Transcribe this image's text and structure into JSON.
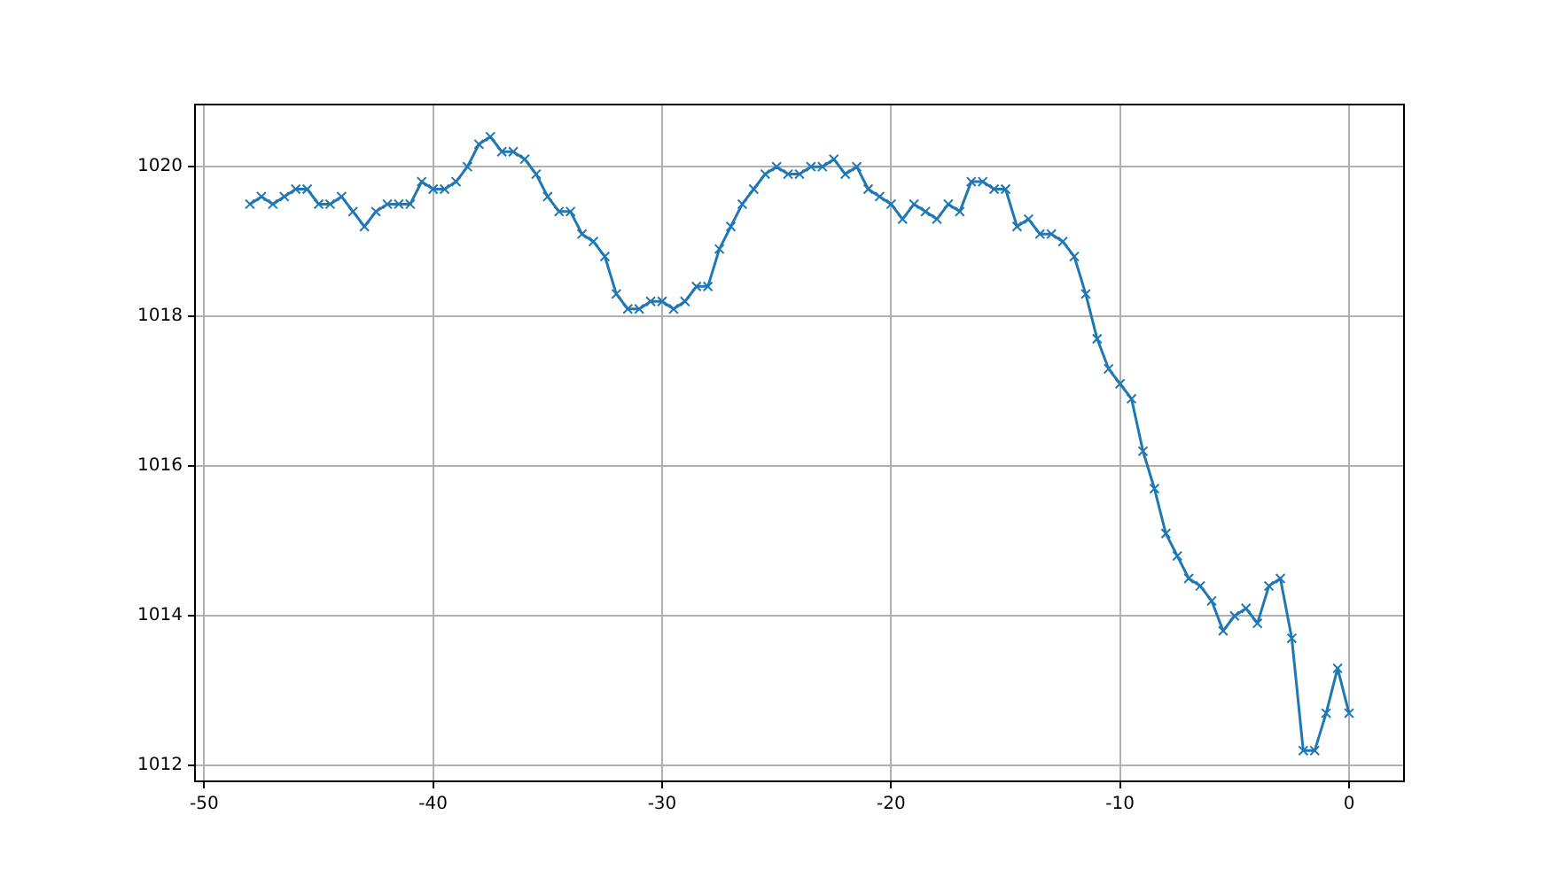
{
  "chart_data": {
    "type": "line",
    "marker": "cross",
    "grid": true,
    "xlim": [
      -50.4,
      2.4
    ],
    "ylim": [
      1011.79,
      1020.83
    ],
    "xticks": [
      -50,
      -40,
      -30,
      -20,
      -10,
      0
    ],
    "yticks": [
      1012,
      1014,
      1016,
      1018,
      1020
    ],
    "x": [
      -48,
      -47.5,
      -47,
      -46.5,
      -46,
      -45.5,
      -45,
      -44.5,
      -44,
      -43.5,
      -43,
      -42.5,
      -42,
      -41.5,
      -41,
      -40.5,
      -40,
      -39.5,
      -39,
      -38.5,
      -38,
      -37.5,
      -37,
      -36.5,
      -36,
      -35.5,
      -35,
      -34.5,
      -34,
      -33.5,
      -33,
      -32.5,
      -32,
      -31.5,
      -31,
      -30.5,
      -30,
      -29.5,
      -29,
      -28.5,
      -28,
      -27.5,
      -27,
      -26.5,
      -26,
      -25.5,
      -25,
      -24.5,
      -24,
      -23.5,
      -23,
      -22.5,
      -22,
      -21.5,
      -21,
      -20.5,
      -20,
      -19.5,
      -19,
      -18.5,
      -18,
      -17.5,
      -17,
      -16.5,
      -16,
      -15.5,
      -15,
      -14.5,
      -14,
      -13.5,
      -13,
      -12.5,
      -12,
      -11.5,
      -11,
      -10.5,
      -10,
      -9.5,
      -9,
      -8.5,
      -8,
      -7.5,
      -7,
      -6.5,
      -6,
      -5.5,
      -5,
      -4.5,
      -4,
      -3.5,
      -3,
      -2.5,
      -2,
      -1.5,
      -1,
      -0.5,
      0
    ],
    "series": [
      {
        "color": "#1f77b4",
        "values": [
          1019.5,
          1019.6,
          1019.5,
          1019.6,
          1019.7,
          1019.7,
          1019.5,
          1019.5,
          1019.6,
          1019.4,
          1019.2,
          1019.4,
          1019.5,
          1019.5,
          1019.5,
          1019.8,
          1019.7,
          1019.7,
          1019.8,
          1020.0,
          1020.3,
          1020.4,
          1020.2,
          1020.2,
          1020.1,
          1019.9,
          1019.6,
          1019.4,
          1019.4,
          1019.1,
          1019.0,
          1018.8,
          1018.3,
          1018.1,
          1018.1,
          1018.2,
          1018.2,
          1018.1,
          1018.2,
          1018.4,
          1018.4,
          1018.9,
          1019.2,
          1019.5,
          1019.7,
          1019.9,
          1020.0,
          1019.9,
          1019.9,
          1020.0,
          1020.0,
          1020.1,
          1019.9,
          1020.0,
          1019.7,
          1019.6,
          1019.5,
          1019.3,
          1019.5,
          1019.4,
          1019.3,
          1019.5,
          1019.4,
          1019.8,
          1019.8,
          1019.7,
          1019.7,
          1019.2,
          1019.3,
          1019.1,
          1019.1,
          1019.0,
          1018.8,
          1018.3,
          1017.7,
          1017.3,
          1017.1,
          1016.9,
          1016.2,
          1015.7,
          1015.1,
          1014.8,
          1014.5,
          1014.4,
          1014.2,
          1013.8,
          1014.0,
          1014.1,
          1013.9,
          1014.4,
          1014.5,
          1013.7,
          1012.2,
          1012.2,
          1012.7,
          1013.3,
          1012.7
        ]
      }
    ]
  }
}
